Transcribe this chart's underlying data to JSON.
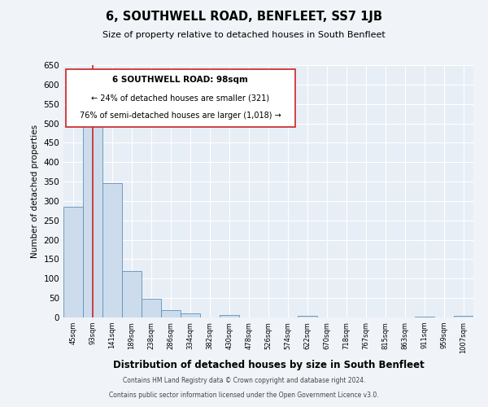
{
  "title": "6, SOUTHWELL ROAD, BENFLEET, SS7 1JB",
  "subtitle": "Size of property relative to detached houses in South Benfleet",
  "xlabel": "Distribution of detached houses by size in South Benfleet",
  "ylabel": "Number of detached properties",
  "footnote1": "Contains HM Land Registry data © Crown copyright and database right 2024.",
  "footnote2": "Contains public sector information licensed under the Open Government Licence v3.0.",
  "bin_labels": [
    "45sqm",
    "93sqm",
    "141sqm",
    "189sqm",
    "238sqm",
    "286sqm",
    "334sqm",
    "382sqm",
    "430sqm",
    "478sqm",
    "526sqm",
    "574sqm",
    "622sqm",
    "670sqm",
    "718sqm",
    "767sqm",
    "815sqm",
    "863sqm",
    "911sqm",
    "959sqm",
    "1007sqm"
  ],
  "bar_values": [
    285,
    525,
    345,
    120,
    48,
    18,
    10,
    0,
    7,
    0,
    0,
    0,
    4,
    0,
    0,
    0,
    0,
    0,
    3,
    0,
    4
  ],
  "bar_color": "#ccdcec",
  "bar_edge_color": "#6090b8",
  "red_line_x": 1,
  "annotation_title": "6 SOUTHWELL ROAD: 98sqm",
  "annotation_line1": "← 24% of detached houses are smaller (321)",
  "annotation_line2": "76% of semi-detached houses are larger (1,018) →",
  "ylim": [
    0,
    650
  ],
  "yticks": [
    0,
    50,
    100,
    150,
    200,
    250,
    300,
    350,
    400,
    450,
    500,
    550,
    600,
    650
  ],
  "bg_color": "#f0f4f8",
  "plot_bg_color": "#e8eef5",
  "grid_color": "#ffffff",
  "annotation_box_color": "#ffffff",
  "annotation_box_edge": "#cc2222",
  "red_line_color": "#cc2222"
}
